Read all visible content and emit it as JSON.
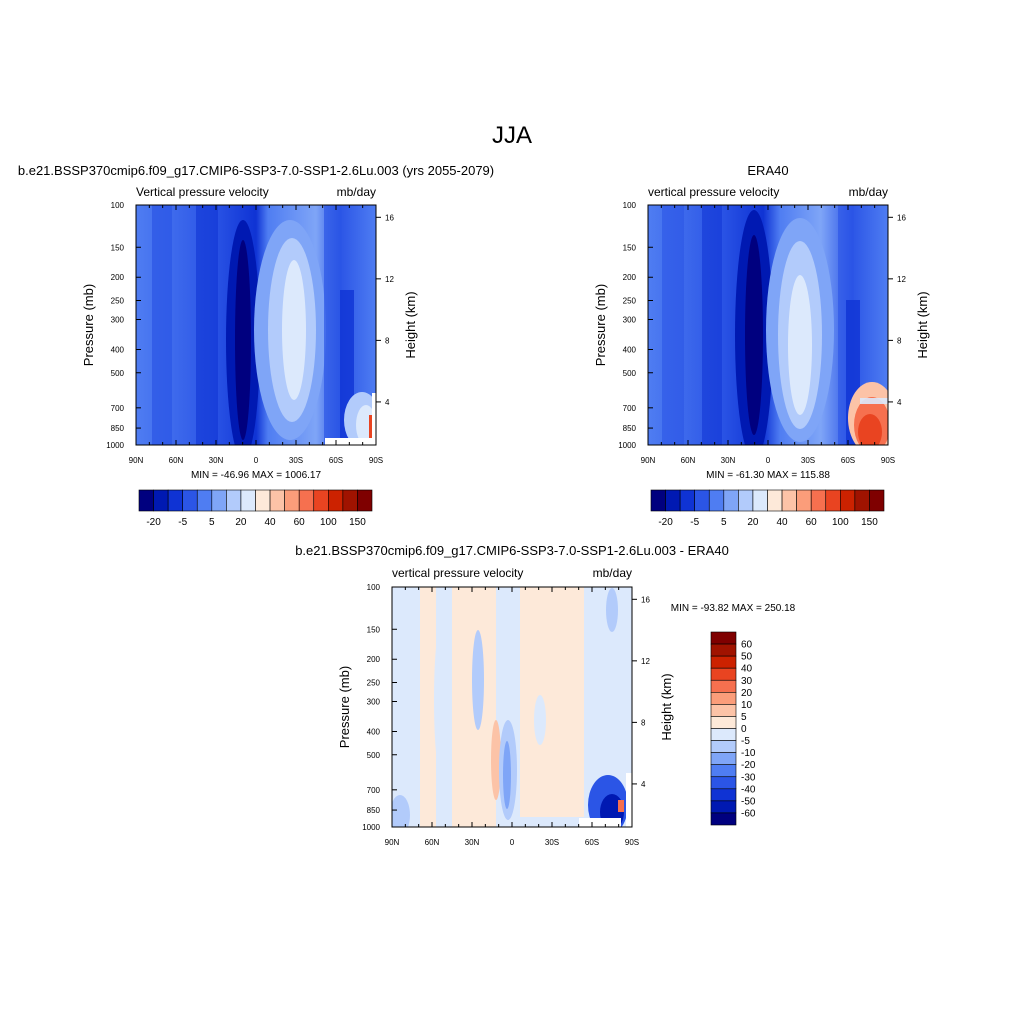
{
  "figure": {
    "title": "JJA"
  },
  "chart_data": [
    {
      "type": "heatmap",
      "title": "b.e21.BSSP370cmip6.f09_g17.CMIP6-SSP3-7.0-SSP1-2.6Lu.003 (yrs 2055-2079)",
      "left_label": "Vertical pressure velocity",
      "right_label": "mb/day",
      "xlabel": "",
      "ylabel": "Pressure (mb)",
      "y2label": "Height (km)",
      "x_ticks": [
        "90N",
        "60N",
        "30N",
        "0",
        "30S",
        "60S",
        "90S"
      ],
      "y_ticks": [
        "100",
        "150",
        "200",
        "250",
        "300",
        "400",
        "500",
        "700",
        "850",
        "1000"
      ],
      "y_tick_values": [
        100,
        150,
        200,
        250,
        300,
        400,
        500,
        700,
        850,
        1000
      ],
      "y2_ticks": [
        "16",
        "12",
        "8",
        "4"
      ],
      "y2_tick_values": [
        16,
        12,
        8,
        4
      ],
      "ylim": [
        1000,
        100
      ],
      "xlim": [
        90,
        -90
      ],
      "log_y": true,
      "min_max": "MIN = -46.96  MAX = 1006.17",
      "colorbar": {
        "orientation": "horizontal",
        "labels": [
          "-20",
          "-5",
          "5",
          "20",
          "40",
          "60",
          "100",
          "150"
        ],
        "colors": [
          "#00007f",
          "#0019b2",
          "#0f33d4",
          "#2b55e6",
          "#4f7df2",
          "#7fa5f7",
          "#b2cbfb",
          "#dce9fc",
          "#fde9d9",
          "#fcc3a7",
          "#fb9d7a",
          "#f6704f",
          "#e94421",
          "#cc2200",
          "#a01300",
          "#7f0000"
        ]
      }
    },
    {
      "type": "heatmap",
      "title": "ERA40",
      "left_label": "vertical pressure velocity",
      "right_label": "mb/day",
      "xlabel": "",
      "ylabel": "Pressure (mb)",
      "y2label": "Height (km)",
      "x_ticks": [
        "90N",
        "60N",
        "30N",
        "0",
        "30S",
        "60S",
        "90S"
      ],
      "y_ticks": [
        "100",
        "150",
        "200",
        "250",
        "300",
        "400",
        "500",
        "700",
        "850",
        "1000"
      ],
      "y_tick_values": [
        100,
        150,
        200,
        250,
        300,
        400,
        500,
        700,
        850,
        1000
      ],
      "y2_ticks": [
        "16",
        "12",
        "8",
        "4"
      ],
      "y2_tick_values": [
        16,
        12,
        8,
        4
      ],
      "ylim": [
        1000,
        100
      ],
      "xlim": [
        90,
        -90
      ],
      "log_y": true,
      "min_max": "MIN = -61.30  MAX = 115.88",
      "colorbar": {
        "orientation": "horizontal",
        "labels": [
          "-20",
          "-5",
          "5",
          "20",
          "40",
          "60",
          "100",
          "150"
        ],
        "colors": [
          "#00007f",
          "#0019b2",
          "#0f33d4",
          "#2b55e6",
          "#4f7df2",
          "#7fa5f7",
          "#b2cbfb",
          "#dce9fc",
          "#fde9d9",
          "#fcc3a7",
          "#fb9d7a",
          "#f6704f",
          "#e94421",
          "#cc2200",
          "#a01300",
          "#7f0000"
        ]
      }
    },
    {
      "type": "heatmap",
      "title": "b.e21.BSSP370cmip6.f09_g17.CMIP6-SSP3-7.0-SSP1-2.6Lu.003 - ERA40",
      "left_label": "vertical pressure velocity",
      "right_label": "mb/day",
      "xlabel": "",
      "ylabel": "Pressure (mb)",
      "y2label": "Height (km)",
      "x_ticks": [
        "90N",
        "60N",
        "30N",
        "0",
        "30S",
        "60S",
        "90S"
      ],
      "y_ticks": [
        "100",
        "150",
        "200",
        "250",
        "300",
        "400",
        "500",
        "700",
        "850",
        "1000"
      ],
      "y_tick_values": [
        100,
        150,
        200,
        250,
        300,
        400,
        500,
        700,
        850,
        1000
      ],
      "y2_ticks": [
        "16",
        "12",
        "8",
        "4"
      ],
      "y2_tick_values": [
        16,
        12,
        8,
        4
      ],
      "ylim": [
        1000,
        100
      ],
      "xlim": [
        90,
        -90
      ],
      "log_y": true,
      "min_max": "MIN = -93.82  MAX = 250.18",
      "colorbar": {
        "orientation": "vertical",
        "labels": [
          "60",
          "50",
          "40",
          "30",
          "20",
          "10",
          "5",
          "0",
          "-5",
          "-10",
          "-20",
          "-30",
          "-40",
          "-50",
          "-60"
        ],
        "colors": [
          "#7f0000",
          "#a01300",
          "#cc2200",
          "#e94421",
          "#f6704f",
          "#fb9d7a",
          "#fcc3a7",
          "#fde9d9",
          "#dce9fc",
          "#b2cbfb",
          "#7fa5f7",
          "#4f7df2",
          "#2b55e6",
          "#0f33d4",
          "#0019b2",
          "#00007f"
        ]
      }
    }
  ]
}
